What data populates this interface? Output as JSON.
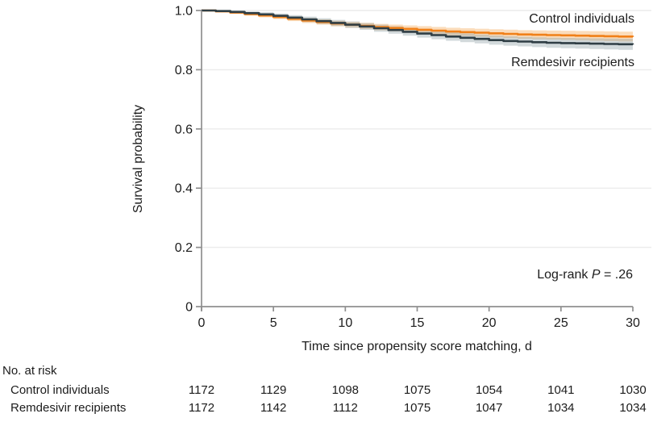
{
  "figure": {
    "curve_labels": {
      "control": "Control individuals",
      "remdesivir": "Remdesivir recipients"
    },
    "annotation": {
      "prefix": "Log-rank ",
      "p_symbol": "P",
      "rest": " = .26"
    }
  },
  "colors": {
    "control_line": "#f08019",
    "control_band": "#f5a755",
    "remdesivir_line": "#2f3e45",
    "remdesivir_band": "#8fa0a5",
    "grid": "#ececec",
    "axis": "#8f8f8f",
    "text": "#1c1c1c"
  },
  "chart_data": {
    "type": "line",
    "subtype": "kaplan-meier-step",
    "title": "",
    "xlabel": "Time since propensity score matching, d",
    "ylabel": "Survival probability",
    "xlim": [
      0,
      30
    ],
    "ylim": [
      0,
      1.0
    ],
    "x_ticks": [
      0,
      5,
      10,
      15,
      20,
      25,
      30
    ],
    "x_tick_labels": [
      "0",
      "5",
      "10",
      "15",
      "20",
      "25",
      "30"
    ],
    "y_ticks": [
      0,
      0.2,
      0.4,
      0.6,
      0.8,
      1.0
    ],
    "y_tick_labels": [
      "0",
      "0.2",
      "0.4",
      "0.6",
      "0.8",
      "1.0"
    ],
    "grid": true,
    "legend_position": "right-inline",
    "annotation": "Log-rank P = .26",
    "x": [
      0,
      1,
      2,
      3,
      4,
      5,
      6,
      7,
      8,
      9,
      10,
      11,
      12,
      13,
      14,
      15,
      16,
      17,
      18,
      19,
      20,
      21,
      22,
      23,
      24,
      25,
      26,
      27,
      28,
      29,
      30
    ],
    "series": [
      {
        "name": "Control individuals",
        "color": "#f08019",
        "band_color": "#f5a755",
        "values": [
          1.0,
          0.997,
          0.993,
          0.988,
          0.983,
          0.978,
          0.972,
          0.966,
          0.961,
          0.956,
          0.952,
          0.948,
          0.944,
          0.941,
          0.938,
          0.935,
          0.932,
          0.929,
          0.927,
          0.925,
          0.923,
          0.921,
          0.919,
          0.918,
          0.917,
          0.916,
          0.915,
          0.914,
          0.913,
          0.912,
          0.911
        ],
        "ci_halfwidth_end": 0.017
      },
      {
        "name": "Remdesivir recipients",
        "color": "#2f3e45",
        "band_color": "#8fa0a5",
        "values": [
          1.0,
          0.998,
          0.995,
          0.991,
          0.987,
          0.982,
          0.976,
          0.97,
          0.964,
          0.958,
          0.952,
          0.946,
          0.94,
          0.934,
          0.928,
          0.922,
          0.917,
          0.912,
          0.908,
          0.904,
          0.9,
          0.897,
          0.895,
          0.893,
          0.891,
          0.89,
          0.889,
          0.888,
          0.887,
          0.886,
          0.885
        ],
        "ci_halfwidth_end": 0.019
      }
    ]
  },
  "risk_table": {
    "header": "No. at risk",
    "times": [
      0,
      5,
      10,
      15,
      20,
      25,
      30
    ],
    "rows": [
      {
        "label": "Control individuals",
        "values": [
          1172,
          1129,
          1098,
          1075,
          1054,
          1041,
          1030
        ]
      },
      {
        "label": "Remdesivir recipients",
        "values": [
          1172,
          1142,
          1112,
          1075,
          1047,
          1034,
          1034
        ]
      }
    ]
  }
}
